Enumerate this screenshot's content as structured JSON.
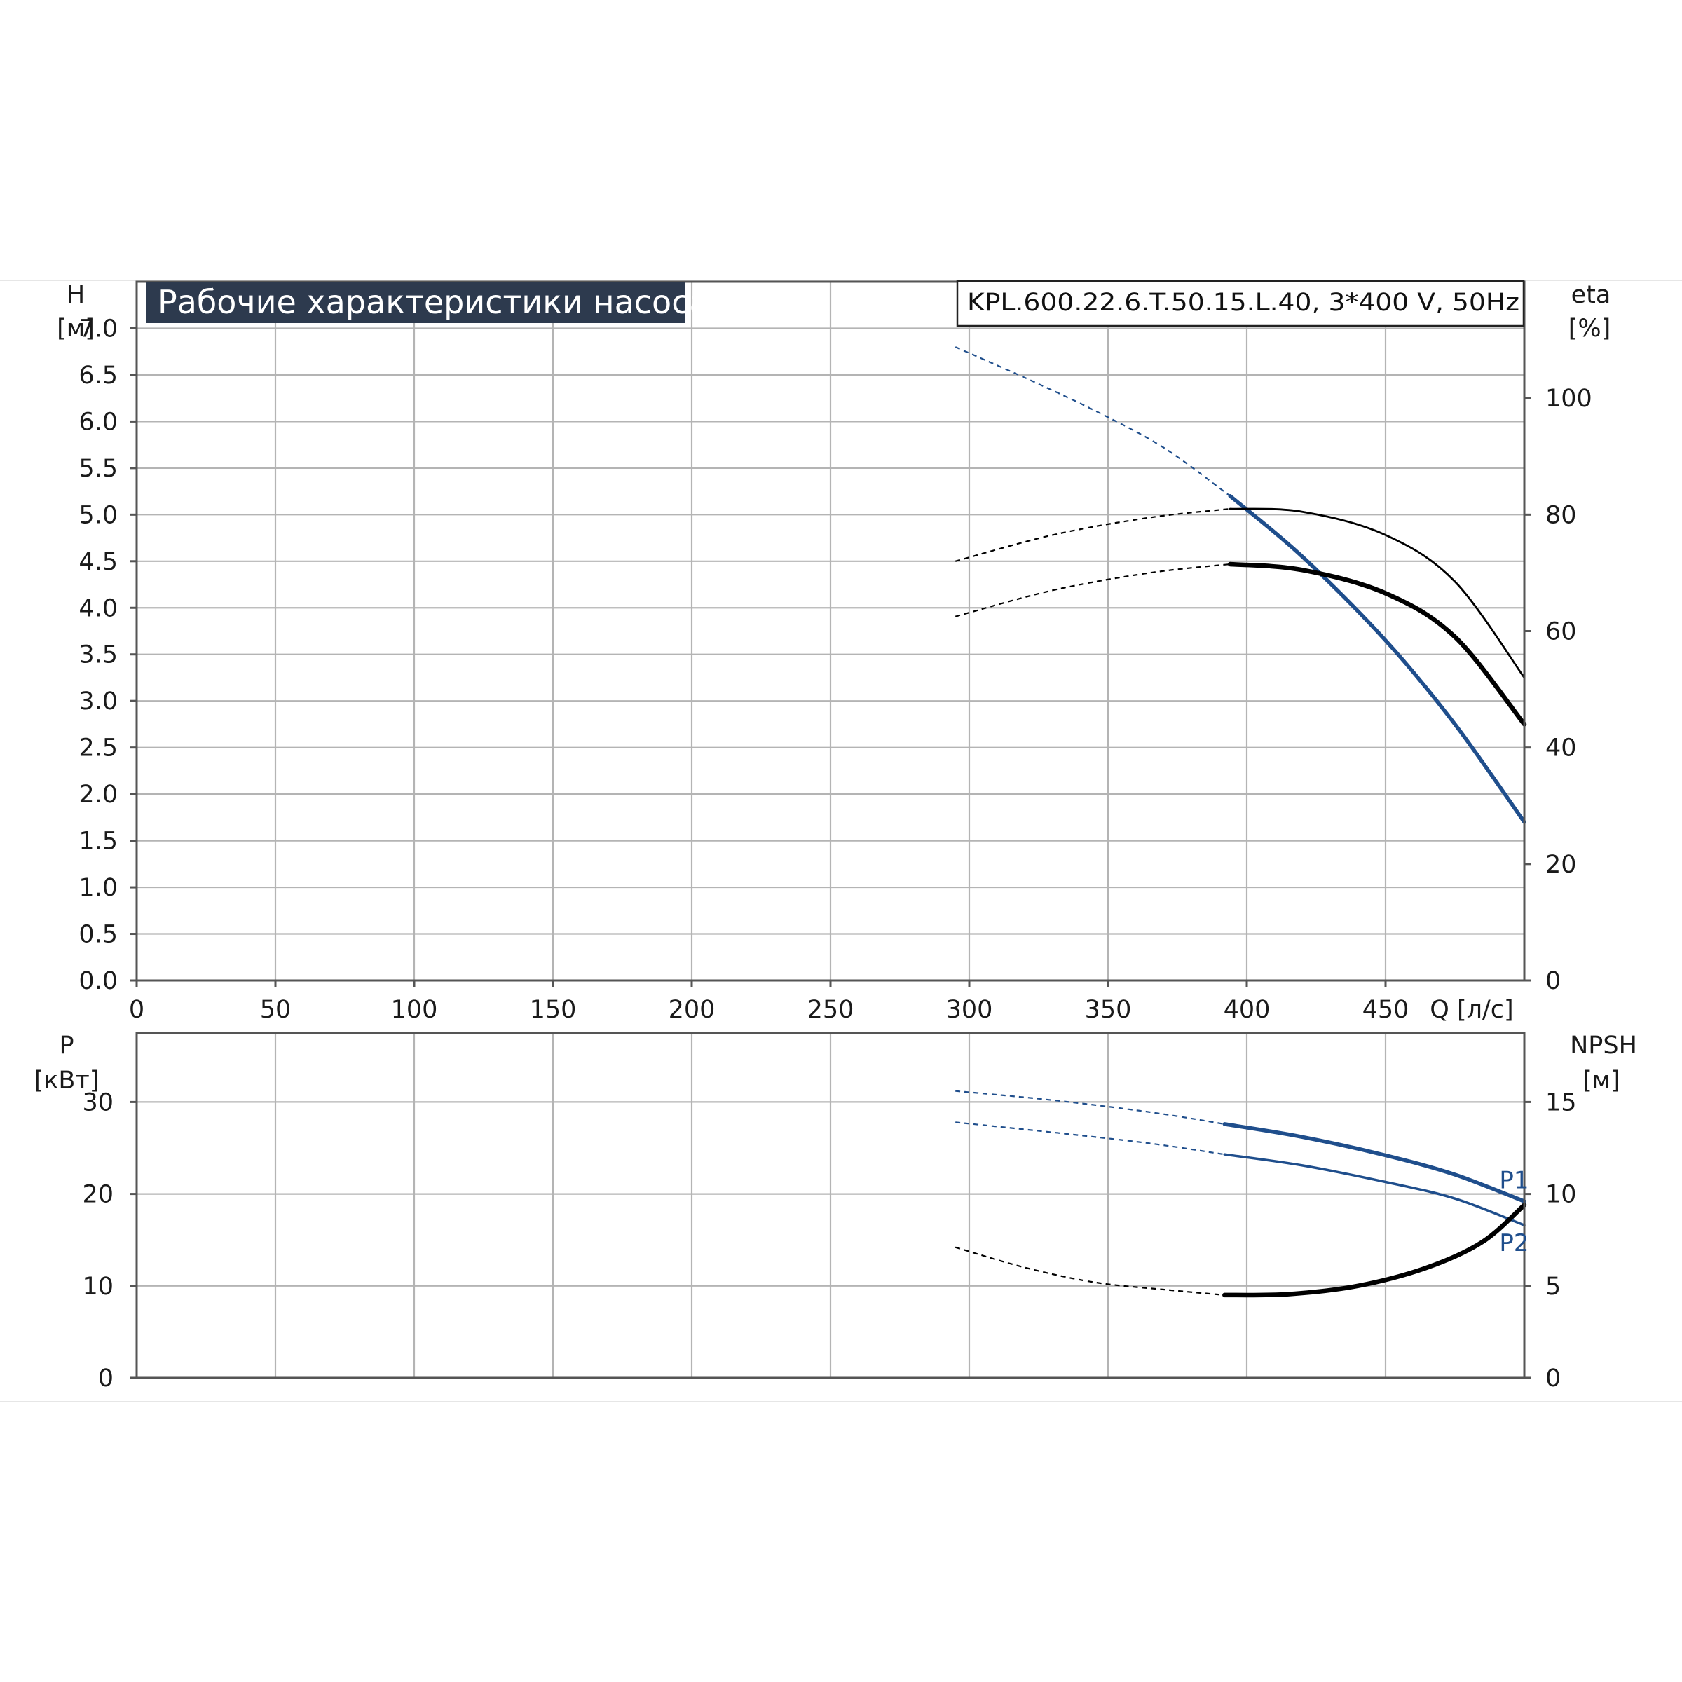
{
  "title": "Рабочие характеристики насоса",
  "model": "KPL.600.22.6.T.50.15.L.40, 3*400 V, 50Hz",
  "colors": {
    "blue": "#1f4e8c",
    "black": "#000000",
    "title_bg": "#2d3a4e",
    "grid": "#b4b4b4"
  },
  "chart_data": [
    {
      "type": "line",
      "name": "top",
      "x_axis": {
        "label": "Q [л/с]",
        "range": [
          0,
          500
        ],
        "ticks": [
          "0",
          "50",
          "100",
          "150",
          "200",
          "250",
          "300",
          "350",
          "400",
          "450"
        ],
        "tick_values": [
          0,
          50,
          100,
          150,
          200,
          250,
          300,
          350,
          400,
          450
        ]
      },
      "y_axis_left": {
        "label_line1": "H",
        "label_line2": "[м]",
        "range": [
          0,
          7.5
        ],
        "ticks": [
          "0.0",
          "0.5",
          "1.0",
          "1.5",
          "2.0",
          "2.5",
          "3.0",
          "3.5",
          "4.0",
          "4.5",
          "5.0",
          "5.5",
          "6.0",
          "6.5",
          "7.0"
        ],
        "tick_values": [
          0,
          0.5,
          1,
          1.5,
          2,
          2.5,
          3,
          3.5,
          4,
          4.5,
          5,
          5.5,
          6,
          6.5,
          7
        ]
      },
      "y_axis_right": {
        "label_line1": "eta",
        "label_line2": "[%]",
        "range": [
          0,
          120
        ],
        "ticks": [
          "0",
          "20",
          "40",
          "60",
          "80",
          "100"
        ],
        "tick_values": [
          0,
          20,
          40,
          60,
          80,
          100
        ]
      },
      "grid": true,
      "series": [
        {
          "axis": "left",
          "color": "#1f4e8c",
          "style": "blue-thick",
          "dashed": {
            "x": [
              295,
              320,
              345,
              370,
              394
            ],
            "y": [
              6.8,
              6.47,
              6.12,
              5.72,
              5.2
            ]
          },
          "solid": {
            "x": [
              394,
              420,
              450,
              475,
              500
            ],
            "y": [
              5.2,
              4.55,
              3.65,
              2.75,
              1.7
            ]
          }
        },
        {
          "axis": "right",
          "color": "#000000",
          "style": "black-thin",
          "dashed": {
            "x": [
              295,
              330,
              365,
              394
            ],
            "y": [
              72,
              76.5,
              79.5,
              81
            ]
          },
          "solid": {
            "x": [
              394,
              420,
              450,
              475,
              500
            ],
            "y": [
              81,
              80.5,
              76.5,
              68.5,
              52
            ]
          }
        },
        {
          "axis": "right",
          "color": "#000000",
          "style": "black-thick",
          "dashed": {
            "x": [
              295,
              330,
              365,
              394
            ],
            "y": [
              62.5,
              67,
              70,
              71.5
            ]
          },
          "solid": {
            "x": [
              394,
              420,
              450,
              475,
              500
            ],
            "y": [
              71.5,
              70.5,
              66.5,
              59,
              44
            ]
          }
        }
      ]
    },
    {
      "type": "line",
      "name": "bottom",
      "x_axis": {
        "range": [
          0,
          500
        ],
        "tick_values": [
          0,
          50,
          100,
          150,
          200,
          250,
          300,
          350,
          400,
          450,
          500
        ]
      },
      "y_axis_left": {
        "label_line1": "P",
        "label_line2": "[кВт]",
        "range": [
          0,
          37.5
        ],
        "ticks": [
          "0",
          "10",
          "20",
          "30"
        ],
        "tick_values": [
          0,
          10,
          20,
          30
        ]
      },
      "y_axis_right": {
        "label_line1": "NPSH",
        "label_line2": "[м]",
        "range": [
          0,
          18.75
        ],
        "ticks": [
          "0",
          "5",
          "10",
          "15"
        ],
        "tick_values": [
          0,
          5,
          10,
          15
        ]
      },
      "grid": true,
      "series": [
        {
          "name": "P1",
          "axis": "left",
          "color": "#1f4e8c",
          "style": "blue-thick",
          "label_at": {
            "x": 491,
            "y": 20.6
          },
          "dashed": {
            "x": [
              295,
              330,
              365,
              392
            ],
            "y": [
              31.2,
              30.2,
              28.9,
              27.6
            ]
          },
          "solid": {
            "x": [
              392,
              420,
              450,
              475,
              500
            ],
            "y": [
              27.6,
              26.2,
              24.2,
              22.1,
              19.2
            ]
          }
        },
        {
          "name": "P2",
          "axis": "left",
          "color": "#1f4e8c",
          "style": "blue-thin",
          "label_at": {
            "x": 491,
            "y": 13.8
          },
          "dashed": {
            "x": [
              295,
              330,
              365,
              392
            ],
            "y": [
              27.8,
              26.7,
              25.5,
              24.3
            ]
          },
          "solid": {
            "x": [
              392,
              420,
              450,
              475,
              500
            ],
            "y": [
              24.3,
              23.1,
              21.3,
              19.5,
              16.6
            ]
          }
        },
        {
          "axis": "right",
          "color": "#000000",
          "style": "black-thick",
          "dashed": {
            "x": [
              295,
              320,
              345,
              370,
              392
            ],
            "y": [
              7.1,
              6.0,
              5.2,
              4.8,
              4.5
            ]
          },
          "solid": {
            "x": [
              392,
              415,
              440,
              465,
              485,
              500
            ],
            "y": [
              4.5,
              4.55,
              5.0,
              6.0,
              7.4,
              9.4
            ]
          }
        }
      ]
    }
  ]
}
